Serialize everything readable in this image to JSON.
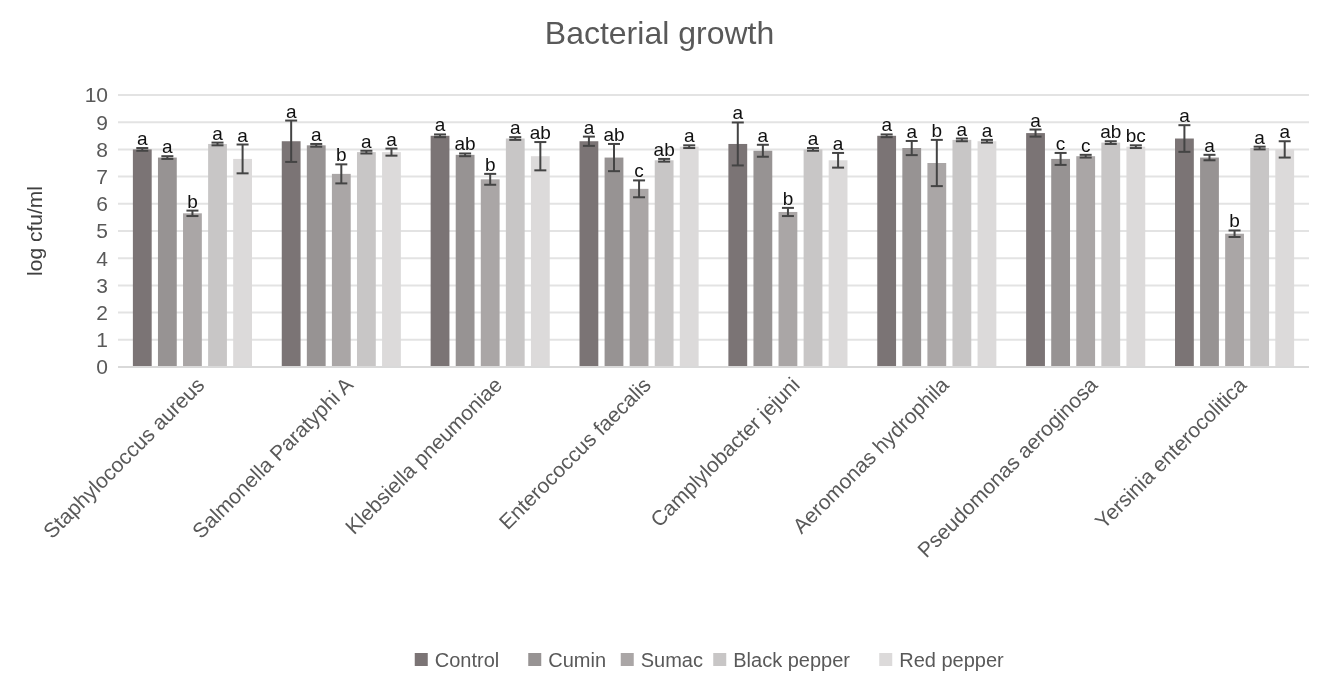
{
  "chart_data": {
    "type": "bar",
    "title": "Bacterial growth",
    "ylabel": "log cfu/ml",
    "categories": [
      "Staphylococcus aureus",
      "Salmonella Paratyphi A",
      "Klebsiella pneumoniae",
      "Enterococcus faecalis",
      "Camplylobacter jejuni",
      "Aeromonas hydrophila",
      "Pseudomonas aeroginosa",
      "Yersinia enterocolitica"
    ],
    "series": [
      {
        "name": "Control",
        "color": "#7b7475",
        "values": [
          8.0,
          8.3,
          8.5,
          8.3,
          8.2,
          8.5,
          8.6,
          8.4
        ],
        "errors": [
          0.05,
          0.76,
          0.05,
          0.17,
          0.79,
          0.05,
          0.13,
          0.49
        ],
        "value_labels": [
          "a",
          "a",
          "a",
          "a",
          "a",
          "a",
          "a",
          "a"
        ]
      },
      {
        "name": "Cumin",
        "color": "#979393",
        "values": [
          7.7,
          8.15,
          7.8,
          7.7,
          7.95,
          8.05,
          7.65,
          7.7
        ],
        "errors": [
          0.05,
          0.05,
          0.05,
          0.5,
          0.22,
          0.26,
          0.22,
          0.1
        ],
        "value_labels": [
          "a",
          "a",
          "ab",
          "ab",
          "a",
          "a",
          "c",
          "a"
        ]
      },
      {
        "name": "Sumac",
        "color": "#aaa6a6",
        "values": [
          5.65,
          7.1,
          6.9,
          6.55,
          5.7,
          7.5,
          7.75,
          4.9
        ],
        "errors": [
          0.1,
          0.35,
          0.2,
          0.31,
          0.15,
          0.85,
          0.05,
          0.12
        ],
        "value_labels": [
          "b",
          "b",
          "b",
          "c",
          "b",
          "b",
          "c",
          "b"
        ]
      },
      {
        "name": "Black pepper",
        "color": "#c8c6c6",
        "values": [
          8.2,
          7.9,
          8.4,
          7.6,
          8.0,
          8.35,
          8.25,
          8.05
        ],
        "errors": [
          0.05,
          0.05,
          0.05,
          0.05,
          0.05,
          0.05,
          0.05,
          0.05
        ],
        "value_labels": [
          "a",
          "a",
          "a",
          "ab",
          "a",
          "a",
          "ab",
          "a"
        ]
      },
      {
        "name": "Red pepper",
        "color": "#dcdada",
        "values": [
          7.65,
          7.9,
          7.75,
          8.1,
          7.6,
          8.3,
          8.1,
          8.0
        ],
        "errors": [
          0.53,
          0.13,
          0.52,
          0.05,
          0.27,
          0.05,
          0.05,
          0.3
        ],
        "value_labels": [
          "a",
          "a",
          "ab",
          "a",
          "a",
          "a",
          "bc",
          "a"
        ]
      }
    ],
    "ylim": [
      0,
      10
    ],
    "yticks": [
      0,
      1,
      2,
      3,
      4,
      5,
      6,
      7,
      8,
      9,
      10
    ],
    "grid": "y",
    "legend": "bottom"
  }
}
